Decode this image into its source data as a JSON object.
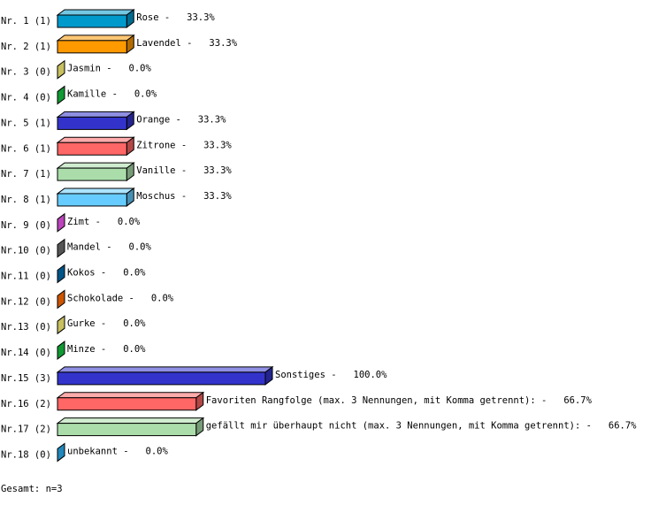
{
  "chart_data": {
    "type": "bar",
    "orientation": "horizontal",
    "style": "3d",
    "separator": " - ",
    "xlim": [
      0,
      100
    ],
    "grid": false,
    "rows": [
      {
        "rank": "Nr. 1",
        "count": "(1)",
        "label": "Rose",
        "value": 33.3,
        "pct": "33.3%",
        "color": "#0099cc"
      },
      {
        "rank": "Nr. 2",
        "count": "(1)",
        "label": "Lavendel",
        "value": 33.3,
        "pct": "33.3%",
        "color": "#ff9900"
      },
      {
        "rank": "Nr. 3",
        "count": "(0)",
        "label": "Jasmin",
        "value": 0.0,
        "pct": "0.0%",
        "color": "#c8c060"
      },
      {
        "rank": "Nr. 4",
        "count": "(0)",
        "label": "Kamille",
        "value": 0.0,
        "pct": "0.0%",
        "color": "#119933"
      },
      {
        "rank": "Nr. 5",
        "count": "(1)",
        "label": "Orange",
        "value": 33.3,
        "pct": "33.3%",
        "color": "#3333cc"
      },
      {
        "rank": "Nr. 6",
        "count": "(1)",
        "label": "Zitrone",
        "value": 33.3,
        "pct": "33.3%",
        "color": "#ff6666"
      },
      {
        "rank": "Nr. 7",
        "count": "(1)",
        "label": "Vanille",
        "value": 33.3,
        "pct": "33.3%",
        "color": "#aaddaa"
      },
      {
        "rank": "Nr. 8",
        "count": "(1)",
        "label": "Moschus",
        "value": 33.3,
        "pct": "33.3%",
        "color": "#66ccff"
      },
      {
        "rank": "Nr. 9",
        "count": "(0)",
        "label": "Zimt",
        "value": 0.0,
        "pct": "0.0%",
        "color": "#bb44bb"
      },
      {
        "rank": "Nr.10",
        "count": "(0)",
        "label": "Mandel",
        "value": 0.0,
        "pct": "0.0%",
        "color": "#555555"
      },
      {
        "rank": "Nr.11",
        "count": "(0)",
        "label": "Kokos",
        "value": 0.0,
        "pct": "0.0%",
        "color": "#005588"
      },
      {
        "rank": "Nr.12",
        "count": "(0)",
        "label": "Schokolade",
        "value": 0.0,
        "pct": "0.0%",
        "color": "#cc5500"
      },
      {
        "rank": "Nr.13",
        "count": "(0)",
        "label": "Gurke",
        "value": 0.0,
        "pct": "0.0%",
        "color": "#c8c060"
      },
      {
        "rank": "Nr.14",
        "count": "(0)",
        "label": "Minze",
        "value": 0.0,
        "pct": "0.0%",
        "color": "#119933"
      },
      {
        "rank": "Nr.15",
        "count": "(3)",
        "label": "Sonstiges",
        "value": 100.0,
        "pct": "100.0%",
        "color": "#3333cc"
      },
      {
        "rank": "Nr.16",
        "count": "(2)",
        "label": "Favoriten Rangfolge (max. 3 Nennungen, mit Komma getrennt):",
        "value": 66.7,
        "pct": "66.7%",
        "color": "#ff6666"
      },
      {
        "rank": "Nr.17",
        "count": "(2)",
        "label": "gefällt mir überhaupt nicht (max. 3 Nennungen, mit Komma getrennt):",
        "value": 66.7,
        "pct": "66.7%",
        "color": "#aaddaa"
      },
      {
        "rank": "Nr.18",
        "count": "(0)",
        "label": "unbekannt",
        "value": 0.0,
        "pct": "0.0%",
        "color": "#2288bb"
      }
    ]
  },
  "footer": {
    "total": "Gesamt: n=3"
  }
}
